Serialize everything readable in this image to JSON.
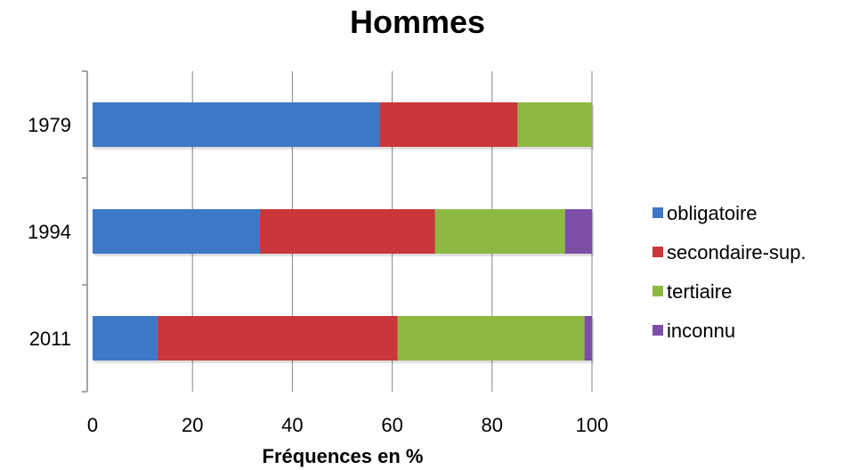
{
  "chart_data": {
    "type": "bar",
    "orientation": "horizontal",
    "stacked": true,
    "title": "Hommes",
    "xlabel": "Fréquences en %",
    "ylabel": "",
    "xlim": [
      0,
      100
    ],
    "xticks": [
      0,
      20,
      40,
      60,
      80,
      100
    ],
    "grid": true,
    "legend_position": "right",
    "categories": [
      "1979",
      "1994",
      "2011"
    ],
    "series": [
      {
        "name": "obligatoire",
        "color": "#3d78c6",
        "values": [
          57.5,
          33.5,
          13
        ]
      },
      {
        "name": "secondaire-sup.",
        "color": "#c9373a",
        "values": [
          27.6,
          35.1,
          48.1
        ]
      },
      {
        "name": "tertiaire",
        "color": "#8db943",
        "values": [
          14.9,
          26,
          37.4
        ]
      },
      {
        "name": "inconnu",
        "color": "#7d4ea6",
        "values": [
          0,
          5.4,
          1.5
        ]
      }
    ]
  }
}
